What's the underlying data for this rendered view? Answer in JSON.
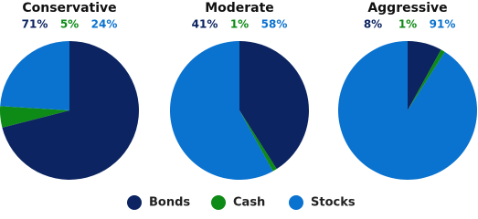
{
  "chart_data": [
    {
      "type": "pie",
      "title": "Conservative",
      "categories": [
        "Bonds",
        "Cash",
        "Stocks"
      ],
      "values": [
        71,
        5,
        24
      ],
      "value_labels": [
        "71%",
        "5%",
        "24%"
      ],
      "colors": [
        "#0c2461",
        "#0e8a16",
        "#0a72cf"
      ]
    },
    {
      "type": "pie",
      "title": "Moderate",
      "categories": [
        "Bonds",
        "Cash",
        "Stocks"
      ],
      "values": [
        41,
        1,
        58
      ],
      "value_labels": [
        "41%",
        "1%",
        "58%"
      ],
      "colors": [
        "#0c2461",
        "#0e8a16",
        "#0a72cf"
      ]
    },
    {
      "type": "pie",
      "title": "Aggressive",
      "categories": [
        "Bonds",
        "Cash",
        "Stocks"
      ],
      "values": [
        8,
        1,
        91
      ],
      "value_labels": [
        "8%",
        "1%",
        "91%"
      ],
      "colors": [
        "#0c2461",
        "#0e8a16",
        "#0a72cf"
      ]
    }
  ]
}
